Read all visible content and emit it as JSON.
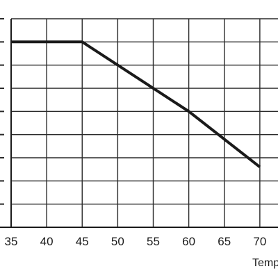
{
  "chart_data": {
    "type": "line",
    "title": "",
    "xlabel": "Temp",
    "ylabel": "",
    "grid": true,
    "xlim": [
      35,
      75
    ],
    "ylim": [
      0,
      90
    ],
    "x_ticks": [
      35,
      40,
      45,
      50,
      55,
      60,
      65,
      70
    ],
    "x_tick_labels": [
      "35",
      "40",
      "45",
      "50",
      "55",
      "60",
      "65",
      "70"
    ],
    "y_ticks": [
      0,
      10,
      20,
      30,
      40,
      50,
      60,
      70,
      80,
      90
    ],
    "series": [
      {
        "x": [
          35,
          45,
          60,
          70
        ],
        "y": [
          80,
          80,
          50,
          26
        ],
        "color": "#1a1a1a"
      }
    ]
  }
}
